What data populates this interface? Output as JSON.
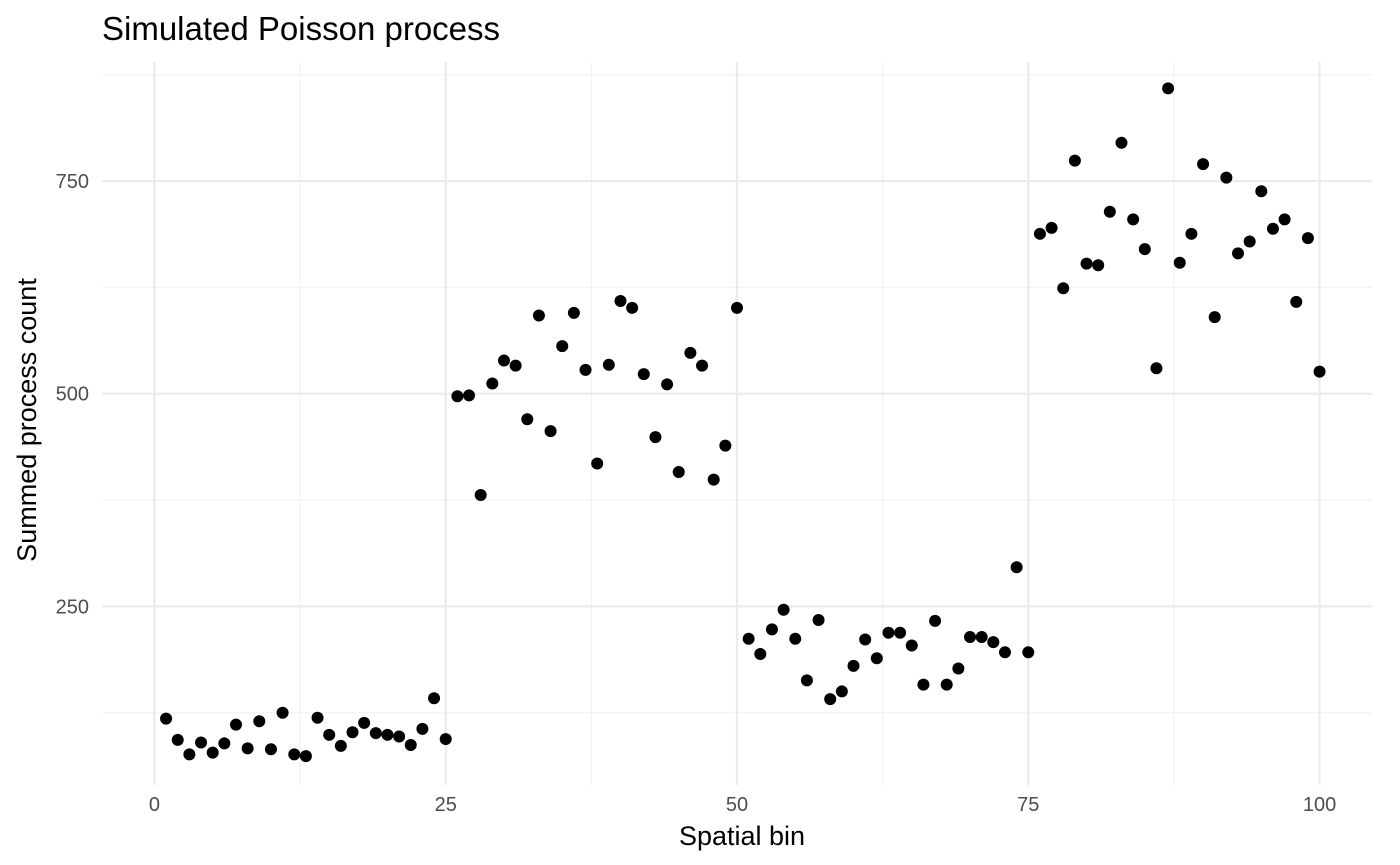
{
  "chart_data": {
    "type": "scatter",
    "title": "Simulated Poisson process",
    "xlabel": "Spatial bin",
    "ylabel": "Summed process count",
    "xlim": [
      -4.5,
      104.5
    ],
    "ylim": [
      40,
      890
    ],
    "x_ticks": [
      0,
      25,
      50,
      75,
      100
    ],
    "y_ticks": [
      250,
      500,
      750
    ],
    "x_minor": [
      12.5,
      37.5,
      62.5,
      87.5
    ],
    "y_minor": [
      125,
      375,
      625,
      875
    ],
    "grid": true,
    "legend": "none",
    "point_color": "#000000",
    "x": [
      1,
      2,
      3,
      4,
      5,
      6,
      7,
      8,
      9,
      10,
      11,
      12,
      13,
      14,
      15,
      16,
      17,
      18,
      19,
      20,
      21,
      22,
      23,
      24,
      25,
      26,
      27,
      28,
      29,
      30,
      31,
      32,
      33,
      34,
      35,
      36,
      37,
      38,
      39,
      40,
      41,
      42,
      43,
      44,
      45,
      46,
      47,
      48,
      49,
      50,
      51,
      52,
      53,
      54,
      55,
      56,
      57,
      58,
      59,
      60,
      61,
      62,
      63,
      64,
      65,
      66,
      67,
      68,
      69,
      70,
      71,
      72,
      73,
      74,
      75,
      76,
      77,
      78,
      79,
      80,
      81,
      82,
      83,
      84,
      85,
      86,
      87,
      88,
      89,
      90,
      91,
      92,
      93,
      94,
      95,
      96,
      97,
      98,
      99,
      100
    ],
    "y": [
      118,
      93,
      76,
      90,
      78,
      89,
      111,
      83,
      115,
      82,
      125,
      76,
      74,
      119,
      99,
      86,
      102,
      113,
      101,
      99,
      97,
      87,
      106,
      142,
      94,
      497,
      498,
      381,
      512,
      539,
      533,
      470,
      592,
      456,
      556,
      595,
      528,
      418,
      534,
      609,
      601,
      523,
      449,
      511,
      408,
      548,
      533,
      399,
      439,
      601,
      212,
      194,
      223,
      246,
      212,
      163,
      234,
      141,
      150,
      180,
      211,
      189,
      219,
      219,
      204,
      158,
      233,
      158,
      177,
      214,
      214,
      208,
      196,
      296,
      196,
      688,
      695,
      624,
      774,
      653,
      651,
      714,
      795,
      705,
      670,
      530,
      859,
      654,
      688,
      770,
      590,
      754,
      665,
      679,
      738,
      694,
      705,
      608,
      683,
      526
    ]
  }
}
